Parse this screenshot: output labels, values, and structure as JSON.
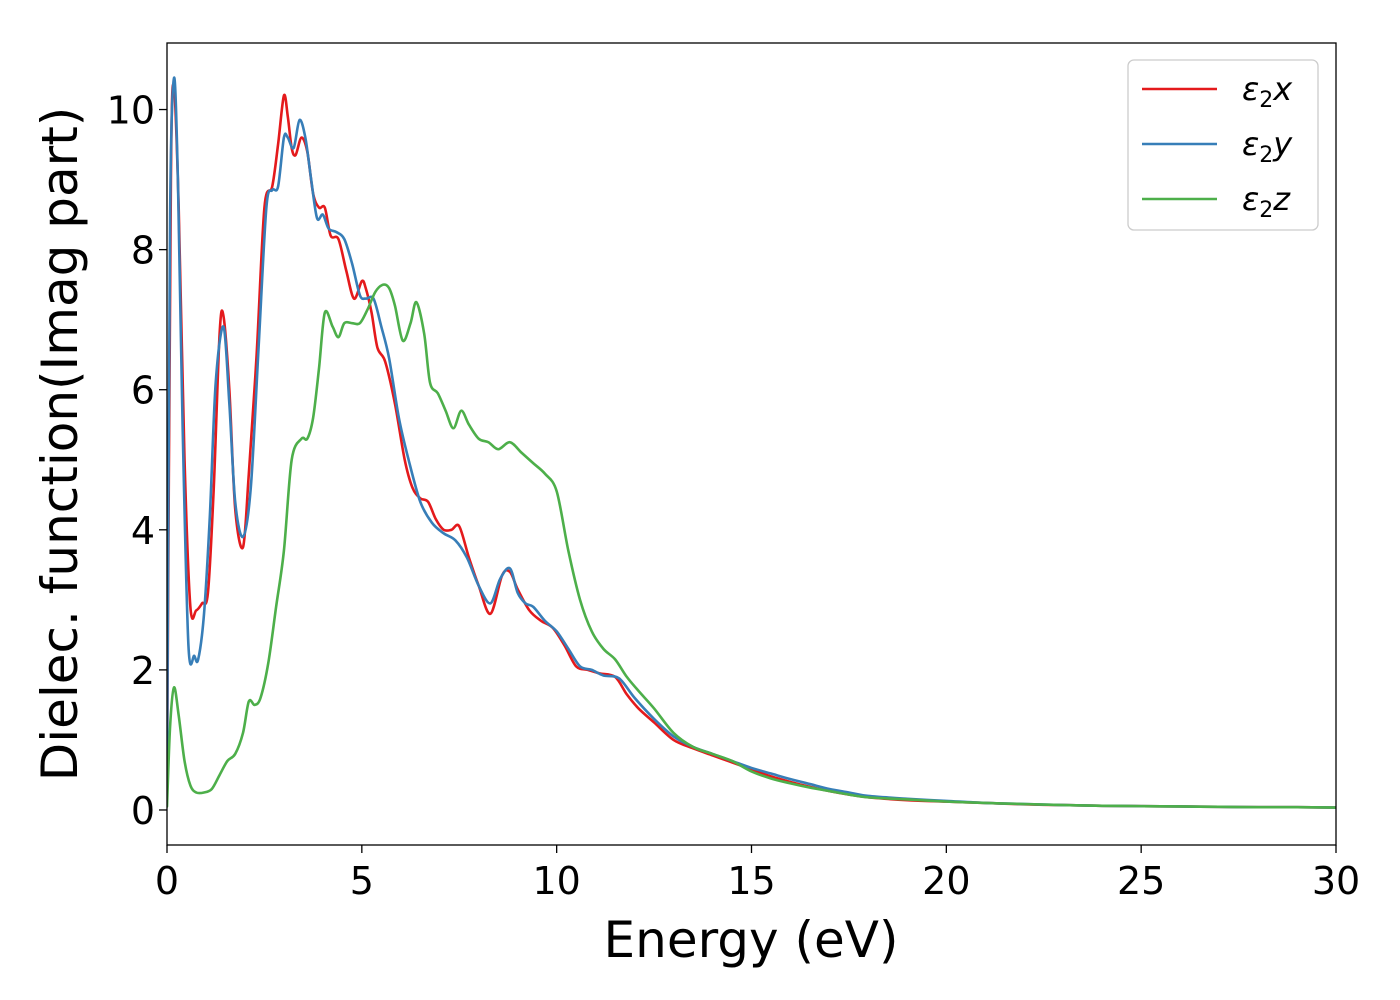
{
  "chart_data": {
    "type": "line",
    "xlabel": "Energy (eV)",
    "ylabel": "Dielec. function(Imag part)",
    "xlim": [
      0,
      30
    ],
    "ylim": [
      -0.5,
      10.95
    ],
    "xticks": [
      0,
      5,
      10,
      15,
      20,
      25,
      30
    ],
    "yticks": [
      0,
      2,
      4,
      6,
      8,
      10
    ],
    "grid": false,
    "legend_position": "top-right",
    "series": [
      {
        "name": "ε2x",
        "label_main": "ε",
        "label_sub": "2",
        "label_axis": "x",
        "color": "#e41a1c",
        "x": [
          0,
          0.1,
          0.18,
          0.3,
          0.45,
          0.6,
          0.75,
          0.9,
          1.05,
          1.2,
          1.35,
          1.45,
          1.6,
          1.75,
          1.95,
          2.1,
          2.3,
          2.5,
          2.7,
          2.85,
          3.0,
          3.1,
          3.2,
          3.3,
          3.45,
          3.6,
          3.75,
          3.9,
          4.05,
          4.2,
          4.4,
          4.6,
          4.8,
          5.0,
          5.1,
          5.25,
          5.4,
          5.6,
          5.85,
          6.1,
          6.3,
          6.5,
          6.7,
          6.9,
          7.1,
          7.3,
          7.5,
          7.75,
          8.0,
          8.3,
          8.6,
          8.8,
          9.0,
          9.3,
          9.6,
          9.9,
          10.2,
          10.5,
          10.8,
          11.1,
          11.5,
          11.8,
          12.1,
          12.5,
          13.0,
          13.5,
          14.0,
          14.5,
          15.0,
          15.5,
          16.0,
          16.5,
          17.0,
          17.5,
          18.0,
          19.0,
          20.0,
          21.0,
          22.0,
          23.0,
          24.0,
          25.0,
          26.0,
          27.0,
          28.0,
          29.0,
          30.0
        ],
        "y": [
          0.3,
          9.0,
          10.3,
          8.6,
          5.0,
          2.9,
          2.85,
          2.95,
          3.1,
          4.6,
          6.8,
          7.05,
          6.0,
          4.3,
          3.75,
          4.8,
          6.5,
          8.6,
          8.9,
          9.5,
          10.2,
          9.9,
          9.45,
          9.35,
          9.6,
          9.4,
          8.8,
          8.6,
          8.6,
          8.2,
          8.15,
          7.7,
          7.3,
          7.55,
          7.45,
          7.1,
          6.6,
          6.4,
          5.8,
          5.0,
          4.6,
          4.45,
          4.4,
          4.15,
          4.0,
          4.0,
          4.05,
          3.6,
          3.2,
          2.8,
          3.35,
          3.4,
          3.15,
          2.85,
          2.7,
          2.6,
          2.35,
          2.05,
          2.0,
          1.95,
          1.9,
          1.65,
          1.45,
          1.25,
          1.0,
          0.88,
          0.78,
          0.68,
          0.58,
          0.48,
          0.4,
          0.33,
          0.27,
          0.22,
          0.18,
          0.14,
          0.12,
          0.1,
          0.08,
          0.07,
          0.06,
          0.055,
          0.05,
          0.045,
          0.04,
          0.04,
          0.035
        ]
      },
      {
        "name": "ε2y",
        "label_main": "ε",
        "label_sub": "2",
        "label_axis": "y",
        "color": "#377eb8",
        "x": [
          0,
          0.08,
          0.18,
          0.28,
          0.4,
          0.55,
          0.7,
          0.8,
          0.95,
          1.1,
          1.25,
          1.45,
          1.6,
          1.75,
          1.95,
          2.15,
          2.35,
          2.55,
          2.7,
          2.85,
          3.0,
          3.1,
          3.25,
          3.4,
          3.55,
          3.7,
          3.85,
          4.0,
          4.15,
          4.35,
          4.55,
          4.75,
          4.95,
          5.1,
          5.3,
          5.5,
          5.7,
          5.95,
          6.2,
          6.5,
          6.8,
          7.1,
          7.4,
          7.7,
          8.0,
          8.3,
          8.55,
          8.8,
          9.0,
          9.2,
          9.4,
          9.7,
          10.0,
          10.3,
          10.6,
          10.9,
          11.2,
          11.6,
          12.0,
          12.5,
          13.0,
          13.5,
          14.0,
          14.5,
          15.0,
          15.5,
          16.0,
          16.5,
          17.0,
          17.5,
          18.0,
          19.0,
          20.0,
          21.0,
          22.0,
          23.0,
          24.0,
          25.0,
          26.0,
          27.0,
          28.0,
          29.0,
          30.0
        ],
        "y": [
          0.3,
          8.5,
          10.45,
          9.0,
          5.5,
          2.35,
          2.2,
          2.15,
          2.8,
          4.2,
          6.1,
          6.9,
          5.8,
          4.4,
          3.9,
          4.6,
          6.6,
          8.6,
          8.85,
          8.9,
          9.6,
          9.6,
          9.45,
          9.85,
          9.6,
          9.0,
          8.45,
          8.5,
          8.3,
          8.25,
          8.15,
          7.8,
          7.35,
          7.3,
          7.3,
          6.9,
          6.45,
          5.6,
          5.0,
          4.4,
          4.1,
          3.95,
          3.85,
          3.6,
          3.2,
          2.95,
          3.3,
          3.45,
          3.1,
          2.95,
          2.9,
          2.7,
          2.55,
          2.3,
          2.05,
          2.0,
          1.92,
          1.88,
          1.6,
          1.3,
          1.05,
          0.9,
          0.8,
          0.7,
          0.6,
          0.52,
          0.44,
          0.37,
          0.3,
          0.25,
          0.2,
          0.16,
          0.13,
          0.1,
          0.085,
          0.07,
          0.06,
          0.055,
          0.05,
          0.045,
          0.04,
          0.04,
          0.035
        ]
      },
      {
        "name": "ε2z",
        "label_main": "ε",
        "label_sub": "2",
        "label_axis": "z",
        "color": "#4daf4a",
        "x": [
          0,
          0.08,
          0.18,
          0.3,
          0.45,
          0.6,
          0.75,
          0.95,
          1.15,
          1.35,
          1.55,
          1.75,
          1.95,
          2.1,
          2.25,
          2.4,
          2.6,
          2.8,
          3.0,
          3.2,
          3.45,
          3.6,
          3.75,
          3.9,
          4.05,
          4.25,
          4.4,
          4.55,
          4.75,
          4.95,
          5.15,
          5.35,
          5.55,
          5.7,
          5.85,
          6.05,
          6.25,
          6.4,
          6.6,
          6.75,
          6.95,
          7.15,
          7.35,
          7.55,
          7.75,
          8.0,
          8.25,
          8.5,
          8.8,
          9.1,
          9.4,
          9.7,
          10.0,
          10.3,
          10.6,
          10.9,
          11.2,
          11.5,
          11.8,
          12.1,
          12.5,
          13.0,
          13.5,
          14.0,
          14.5,
          15.0,
          15.5,
          16.0,
          16.5,
          17.0,
          17.5,
          18.0,
          19.0,
          20.0,
          21.0,
          22.0,
          23.0,
          24.0,
          25.0,
          26.0,
          27.0,
          28.0,
          29.0,
          30.0
        ],
        "y": [
          0.05,
          1.2,
          1.75,
          1.35,
          0.7,
          0.35,
          0.25,
          0.25,
          0.3,
          0.5,
          0.7,
          0.8,
          1.1,
          1.55,
          1.5,
          1.6,
          2.1,
          2.9,
          3.7,
          5.0,
          5.3,
          5.3,
          5.6,
          6.3,
          7.1,
          6.9,
          6.75,
          6.95,
          6.95,
          6.95,
          7.15,
          7.4,
          7.5,
          7.45,
          7.2,
          6.7,
          6.95,
          7.25,
          6.8,
          6.1,
          5.95,
          5.7,
          5.45,
          5.7,
          5.5,
          5.3,
          5.25,
          5.15,
          5.25,
          5.1,
          4.95,
          4.8,
          4.55,
          3.7,
          3.0,
          2.55,
          2.3,
          2.15,
          1.9,
          1.7,
          1.45,
          1.1,
          0.9,
          0.8,
          0.7,
          0.55,
          0.45,
          0.38,
          0.32,
          0.27,
          0.22,
          0.18,
          0.15,
          0.12,
          0.1,
          0.085,
          0.07,
          0.06,
          0.055,
          0.05,
          0.045,
          0.04,
          0.04,
          0.035
        ]
      }
    ]
  }
}
